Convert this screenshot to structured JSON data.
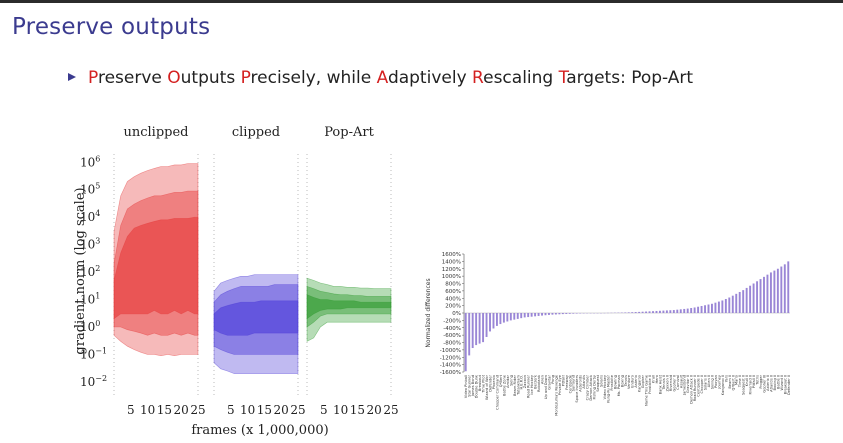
{
  "slide": {
    "title": "Preserve outputs",
    "bullet_parts": [
      {
        "text": "P",
        "red": true
      },
      {
        "text": "reserve ",
        "red": false
      },
      {
        "text": "O",
        "red": true
      },
      {
        "text": "utputs ",
        "red": false
      },
      {
        "text": "P",
        "red": true
      },
      {
        "text": "recisely, while ",
        "red": false
      },
      {
        "text": "A",
        "red": true
      },
      {
        "text": "daptively ",
        "red": false
      },
      {
        "text": "R",
        "red": true
      },
      {
        "text": "escaling ",
        "red": false
      },
      {
        "text": "T",
        "red": true
      },
      {
        "text": "argets: Pop-Art",
        "red": false
      }
    ],
    "colors": {
      "title": "#3b3b8f",
      "highlight": "#d42020"
    }
  },
  "chart_data": [
    {
      "type": "area",
      "ylabel": "gradient norm (log scale)",
      "xlabel": "frames (x 1,000,000)",
      "y_scale": "log",
      "ylim": [
        0.006,
        2000000
      ],
      "y_ticks": [
        {
          "v": 0.01,
          "b": "10",
          "e": "−2"
        },
        {
          "v": 0.1,
          "b": "10",
          "e": "−1"
        },
        {
          "v": 1,
          "b": "10",
          "e": "0"
        },
        {
          "v": 10,
          "b": "10",
          "e": "1"
        },
        {
          "v": 100,
          "b": "10",
          "e": "2"
        },
        {
          "v": 1000,
          "b": "10",
          "e": "3"
        },
        {
          "v": 10000,
          "b": "10",
          "e": "4"
        },
        {
          "v": 100000,
          "b": "10",
          "e": "5"
        },
        {
          "v": 1000000,
          "b": "10",
          "e": "6"
        }
      ],
      "x_ticks": [
        5,
        10,
        15,
        20,
        25
      ],
      "xlim": [
        0,
        25
      ],
      "panels": [
        {
          "title": "unclipped",
          "color": "#e63939",
          "bands": [
            {
              "x": [
                0,
                2,
                4,
                6,
                8,
                10,
                12,
                14,
                16,
                18,
                20,
                22,
                24,
                25
              ],
              "lo": [
                0.5,
                0.3,
                0.2,
                0.15,
                0.12,
                0.1,
                0.1,
                0.09,
                0.1,
                0.09,
                0.1,
                0.1,
                0.1,
                0.1
              ],
              "hi": [
                3000,
                60000,
                200000,
                300000,
                400000,
                500000,
                600000,
                700000,
                700000,
                800000,
                800000,
                900000,
                900000,
                900000
              ]
            },
            {
              "x": [
                0,
                2,
                4,
                6,
                8,
                10,
                12,
                14,
                16,
                18,
                20,
                22,
                24,
                25
              ],
              "lo": [
                1,
                1,
                0.8,
                0.7,
                0.6,
                0.5,
                0.6,
                0.5,
                0.5,
                0.6,
                0.5,
                0.6,
                0.5,
                0.5
              ],
              "hi": [
                200,
                5000,
                20000,
                30000,
                40000,
                50000,
                60000,
                60000,
                70000,
                80000,
                80000,
                90000,
                90000,
                90000
              ]
            },
            {
              "x": [
                0,
                2,
                4,
                6,
                8,
                10,
                12,
                14,
                16,
                18,
                20,
                22,
                24,
                25
              ],
              "lo": [
                2,
                3,
                3,
                3,
                3,
                3,
                4,
                3,
                3,
                4,
                3,
                4,
                3,
                3
              ],
              "hi": [
                50,
                500,
                2000,
                4000,
                5000,
                6000,
                7000,
                8000,
                8000,
                9000,
                9000,
                9000,
                10000,
                10000
              ]
            }
          ]
        },
        {
          "title": "clipped",
          "color": "#4b3ad8",
          "bands": [
            {
              "x": [
                0,
                2,
                4,
                6,
                8,
                10,
                12,
                14,
                16,
                18,
                20,
                22,
                24,
                25
              ],
              "lo": [
                0.05,
                0.03,
                0.025,
                0.02,
                0.02,
                0.02,
                0.02,
                0.02,
                0.02,
                0.02,
                0.02,
                0.02,
                0.02,
                0.02
              ],
              "hi": [
                20,
                40,
                50,
                60,
                70,
                70,
                80,
                80,
                80,
                80,
                80,
                80,
                80,
                80
              ]
            },
            {
              "x": [
                0,
                2,
                4,
                6,
                8,
                10,
                12,
                14,
                16,
                18,
                20,
                22,
                24,
                25
              ],
              "lo": [
                0.2,
                0.15,
                0.12,
                0.1,
                0.1,
                0.1,
                0.1,
                0.1,
                0.1,
                0.1,
                0.1,
                0.1,
                0.1,
                0.1
              ],
              "hi": [
                8,
                15,
                20,
                25,
                30,
                30,
                30,
                30,
                30,
                35,
                35,
                35,
                35,
                35
              ]
            },
            {
              "x": [
                0,
                2,
                4,
                6,
                8,
                10,
                12,
                14,
                16,
                18,
                20,
                22,
                24,
                25
              ],
              "lo": [
                0.8,
                0.6,
                0.5,
                0.5,
                0.5,
                0.5,
                0.6,
                0.6,
                0.6,
                0.6,
                0.6,
                0.6,
                0.6,
                0.6
              ],
              "hi": [
                3,
                5,
                6,
                7,
                8,
                8,
                8,
                9,
                9,
                9,
                9,
                9,
                9,
                9
              ]
            }
          ]
        },
        {
          "title": "Pop-Art",
          "color": "#2e9a2e",
          "bands": [
            {
              "x": [
                0,
                2,
                4,
                6,
                8,
                10,
                12,
                14,
                16,
                18,
                20,
                22,
                24,
                25
              ],
              "lo": [
                0.3,
                0.4,
                1,
                1.5,
                1.5,
                1.5,
                1.5,
                1.5,
                1.5,
                1.5,
                1.5,
                1.5,
                1.5,
                1.5
              ],
              "hi": [
                60,
                50,
                40,
                35,
                30,
                30,
                28,
                28,
                26,
                26,
                25,
                25,
                25,
                25
              ]
            },
            {
              "x": [
                0,
                2,
                4,
                6,
                8,
                10,
                12,
                14,
                16,
                18,
                20,
                22,
                24,
                25
              ],
              "lo": [
                1,
                1.5,
                2.5,
                3,
                3,
                3,
                3,
                3,
                3,
                3,
                3,
                3,
                3,
                3
              ],
              "hi": [
                30,
                25,
                20,
                18,
                16,
                15,
                15,
                14,
                14,
                13,
                13,
                13,
                13,
                13
              ]
            },
            {
              "x": [
                0,
                2,
                4,
                6,
                8,
                10,
                12,
                14,
                16,
                18,
                20,
                22,
                24,
                25
              ],
              "lo": [
                2,
                3,
                4,
                4.5,
                4.5,
                4.5,
                5,
                5,
                5,
                5,
                5,
                5,
                5,
                5
              ],
              "hi": [
                15,
                12,
                10,
                10,
                9,
                9,
                9,
                9,
                8,
                8,
                8,
                8,
                8,
                8
              ]
            }
          ]
        }
      ]
    },
    {
      "type": "bar",
      "ylabel": "Normalized differences",
      "ylim": [
        -1600,
        1600
      ],
      "y_ticks": [
        -1600,
        -1400,
        -1200,
        -1000,
        -800,
        -600,
        -400,
        -200,
        0,
        200,
        400,
        600,
        800,
        1000,
        1200,
        1400,
        1600
      ],
      "bar_color": "#9a86d6",
      "categories": [
        "Video Pinball",
        "Star Gunner",
        "James Bond",
        "Double Dunk",
        "Breakout",
        "Time Pilot",
        "Wizard of Wor",
        "Defender",
        "Phoenix",
        "Chopper Command",
        "Q*Bert",
        "Battle Zone",
        "Amidar",
        "Skiing",
        "Beam Rider",
        "Tutankham",
        "H.E.R.O.",
        "Zaxxon",
        "Road Runner",
        "Ice Hockey",
        "Berzerk",
        "Robotank",
        "Alien",
        "Up and Down",
        "Gravitar",
        "Pong",
        "Montezuma's Revenge",
        "Private Eye",
        "Pitfall!",
        "Freeway",
        "Centipede",
        "Surround",
        "Space Invaders",
        "Asteroids",
        "Atlantis",
        "Crazy Climber",
        "Demon Attack",
        "Fishing Derby",
        "Seaquest",
        "Solaris",
        "Video Hockey",
        "Kung-Fu Master",
        "Frostbite",
        "Bowling",
        "Ms. Pacman",
        "Boxing",
        "Tennis",
        "Venture",
        "Enduro",
        "Asterix",
        "Kangaroo",
        "Gopher",
        "Name This Game",
        "Frostbite II",
        "Krull",
        "Hero",
        "Bank Heist",
        "Tennis II",
        "Zaxxon II",
        "Riverraid",
        "Gopher II",
        "Carnival",
        "Assault",
        "Jamesbond",
        "Gravitar II",
        "Demon Attack II",
        "Road Runner II",
        "Centipede II",
        "Chopper II",
        "Solaris II",
        "Alien II",
        "Skiing II",
        "Pooyan",
        "Journey",
        "Kangaroo II",
        "Yars",
        "Beam II",
        "Q*Bert II",
        "Mario",
        "Time II",
        "Seaquest II",
        "Krull II",
        "Riverraid II",
        "Pitfall II",
        "Tetris",
        "Frogger",
        "Gopher III",
        "Asterix II",
        "Atlantis II",
        "Boxing II",
        "Battle II",
        "Wizard II",
        "Breakout II",
        "Defender II"
      ],
      "values": [
        -1580,
        -1150,
        -950,
        -870,
        -830,
        -790,
        -650,
        -500,
        -420,
        -350,
        -300,
        -260,
        -230,
        -200,
        -180,
        -160,
        -140,
        -120,
        -110,
        -100,
        -90,
        -80,
        -70,
        -60,
        -52,
        -45,
        -40,
        -35,
        -30,
        -26,
        -22,
        -18,
        -15,
        -12,
        -10,
        -8,
        -6,
        -4,
        -2,
        0,
        2,
        4,
        6,
        8,
        10,
        12,
        15,
        18,
        22,
        26,
        30,
        35,
        40,
        45,
        50,
        55,
        60,
        65,
        70,
        75,
        80,
        90,
        100,
        110,
        120,
        135,
        150,
        170,
        190,
        210,
        230,
        250,
        280,
        310,
        340,
        380,
        420,
        470,
        520,
        570,
        620,
        680,
        740,
        800,
        860,
        920,
        980,
        1040,
        1100,
        1150,
        1200,
        1260,
        1320,
        1400
      ]
    }
  ]
}
